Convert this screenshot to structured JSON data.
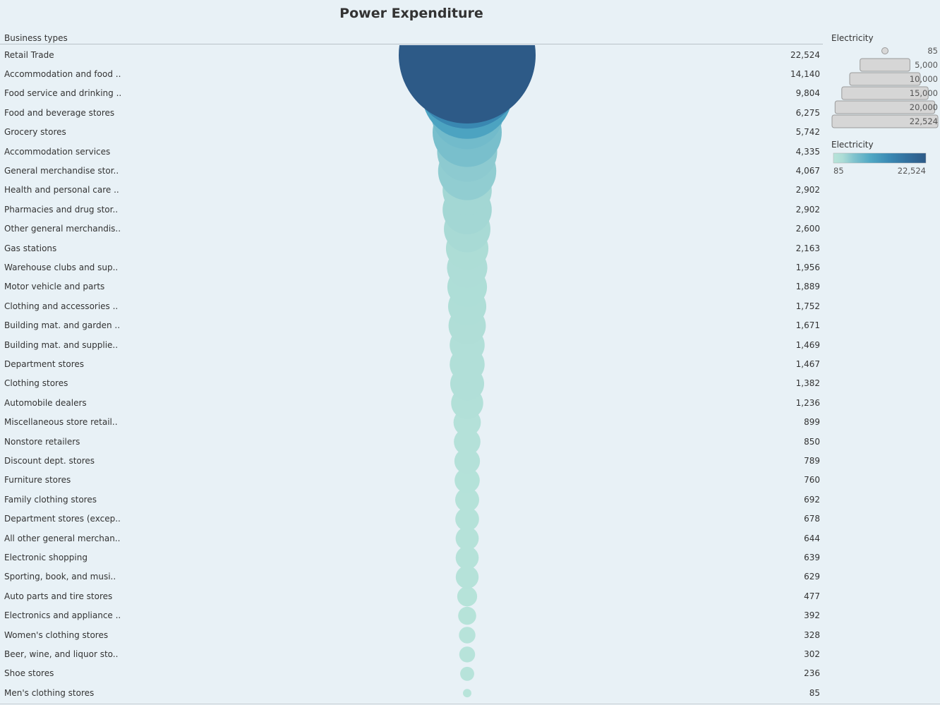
{
  "title": "Power Expenditure",
  "column_header": "Business types",
  "colors": {
    "low": "#b8e4da",
    "high": "#2d5a87"
  },
  "legends": {
    "size_title": "Electricity",
    "size_ticks": [
      {
        "label": "85",
        "value": 85
      },
      {
        "label": "5,000",
        "value": 5000
      },
      {
        "label": "10,000",
        "value": 10000
      },
      {
        "label": "15,000",
        "value": 15000
      },
      {
        "label": "20,000",
        "value": 20000
      },
      {
        "label": "22,524",
        "value": 22524
      }
    ],
    "color_title": "Electricity",
    "color_min_label": "85",
    "color_max_label": "22,524"
  },
  "chart_data": {
    "type": "scatter",
    "encoding": "bubble size and color = Electricity",
    "categories": [
      "Retail Trade",
      "Accommodation and food ..",
      "Food service and drinking ..",
      "Food and beverage stores",
      "Grocery stores",
      "Accommodation services",
      "General merchandise stor..",
      "Health and personal care ..",
      "Pharmacies and drug stor..",
      "Other general merchandis..",
      "Gas stations",
      "Warehouse clubs and sup..",
      "Motor vehicle and parts",
      "Clothing and accessories ..",
      "Building mat. and garden ..",
      "Building mat. and supplie..",
      "Department stores",
      "Clothing stores",
      "Automobile dealers",
      "Miscellaneous store retail..",
      "Nonstore retailers",
      "Discount dept. stores",
      "Furniture stores",
      "Family clothing stores",
      "Department stores (excep..",
      "All other general merchan..",
      "Electronic shopping",
      "Sporting, book, and  musi..",
      "Auto parts and tire stores",
      "Electronics and appliance ..",
      "Women's clothing stores",
      "Beer, wine, and liquor sto..",
      "Shoe stores",
      "Men's clothing stores"
    ],
    "values": [
      22524,
      14140,
      9804,
      6275,
      5742,
      4335,
      4067,
      2902,
      2902,
      2600,
      2163,
      1956,
      1889,
      1752,
      1671,
      1469,
      1467,
      1382,
      1236,
      899,
      850,
      789,
      760,
      692,
      678,
      644,
      639,
      629,
      477,
      392,
      328,
      302,
      236,
      85
    ],
    "value_labels": [
      "22,524",
      "14,140",
      "9,804",
      "6,275",
      "5,742",
      "4,335",
      "4,067",
      "2,902",
      "2,902",
      "2,600",
      "2,163",
      "1,956",
      "1,889",
      "1,752",
      "1,671",
      "1,469",
      "1,467",
      "1,382",
      "1,236",
      "899",
      "850",
      "789",
      "760",
      "692",
      "678",
      "644",
      "639",
      "629",
      "477",
      "392",
      "328",
      "302",
      "236",
      "85"
    ],
    "title": "Power Expenditure",
    "xlabel": "",
    "ylabel": "Business types",
    "legend": "right",
    "grid": false
  }
}
